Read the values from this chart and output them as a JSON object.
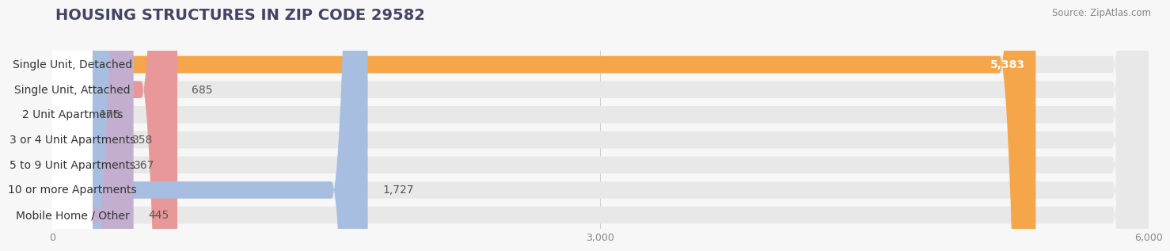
{
  "title": "HOUSING STRUCTURES IN ZIP CODE 29582",
  "source": "Source: ZipAtlas.com",
  "categories": [
    "Single Unit, Detached",
    "Single Unit, Attached",
    "2 Unit Apartments",
    "3 or 4 Unit Apartments",
    "5 to 9 Unit Apartments",
    "10 or more Apartments",
    "Mobile Home / Other"
  ],
  "values": [
    5383,
    685,
    176,
    358,
    367,
    1727,
    445
  ],
  "bar_colors": [
    "#F5A64A",
    "#E89898",
    "#A8BEE0",
    "#A8BEE0",
    "#A8BEE0",
    "#A8BEE0",
    "#C4AECF"
  ],
  "value_inside": [
    true,
    false,
    false,
    false,
    false,
    false,
    false
  ],
  "value_colors_inside": [
    "#ffffff",
    "#555555",
    "#555555",
    "#555555",
    "#555555",
    "#555555",
    "#555555"
  ],
  "xlim": [
    0,
    6000
  ],
  "xticks": [
    0,
    3000,
    6000
  ],
  "xtick_labels": [
    "0",
    "3,000",
    "6,000"
  ],
  "background_color": "#f7f7f7",
  "bar_bg_color": "#e8e8e8",
  "label_bg_color": "#ffffff",
  "title_fontsize": 14,
  "label_fontsize": 10,
  "value_fontsize": 10,
  "bar_height": 0.68,
  "bar_gap": 1.0
}
